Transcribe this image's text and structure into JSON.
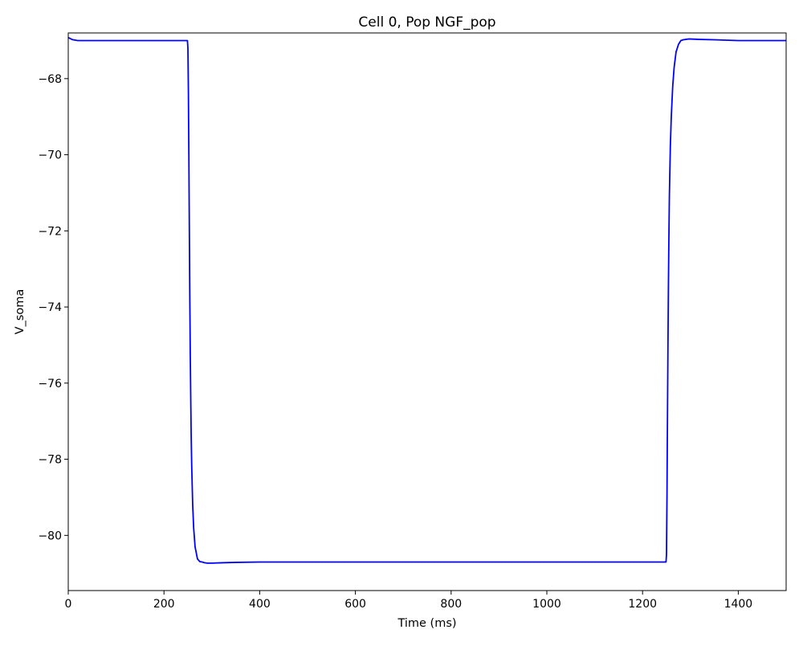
{
  "chart_data": {
    "type": "line",
    "title": "Cell 0, Pop NGF_pop",
    "xlabel": "Time (ms)",
    "ylabel": "V_soma",
    "xlim": [
      0,
      1500
    ],
    "ylim": [
      -81.45,
      -66.8
    ],
    "grid": false,
    "legend": "none",
    "x_ticks": [
      0,
      200,
      400,
      600,
      800,
      1000,
      1200,
      1400
    ],
    "x_tick_labels": [
      "0",
      "200",
      "400",
      "600",
      "800",
      "1000",
      "1200",
      "1400"
    ],
    "y_ticks": [
      -80,
      -78,
      -76,
      -74,
      -72,
      -70,
      -68
    ],
    "y_tick_labels": [
      "−80",
      "−78",
      "−76",
      "−74",
      "−72",
      "−70",
      "−68"
    ],
    "series": [
      {
        "color": "#0000ff",
        "x": [
          0,
          3,
          6,
          10,
          15,
          20,
          30,
          50,
          100,
          150,
          200,
          249,
          250,
          251,
          252,
          253,
          254,
          255,
          256,
          257,
          258,
          260,
          262,
          265,
          270,
          275,
          280,
          285,
          290,
          295,
          300,
          320,
          350,
          400,
          450,
          500,
          600,
          700,
          800,
          900,
          1000,
          1100,
          1200,
          1249,
          1250,
          1251,
          1252,
          1253,
          1254,
          1255,
          1256,
          1258,
          1260,
          1263,
          1266,
          1270,
          1275,
          1280,
          1285,
          1290,
          1295,
          1300,
          1320,
          1350,
          1400,
          1450,
          1500
        ],
        "y": [
          -66.92,
          -66.94,
          -66.96,
          -66.98,
          -66.99,
          -67.0,
          -67.0,
          -67.0,
          -67.0,
          -67.0,
          -67.0,
          -67.0,
          -67.2,
          -68.3,
          -70.0,
          -72.0,
          -73.8,
          -75.3,
          -76.5,
          -77.5,
          -78.2,
          -79.2,
          -79.8,
          -80.3,
          -80.62,
          -80.69,
          -80.7,
          -80.72,
          -80.73,
          -80.73,
          -80.73,
          -80.72,
          -80.71,
          -80.7,
          -80.7,
          -80.7,
          -80.7,
          -80.7,
          -80.7,
          -80.7,
          -80.7,
          -80.7,
          -80.7,
          -80.7,
          -80.5,
          -79.0,
          -77.0,
          -75.1,
          -73.5,
          -72.2,
          -71.1,
          -69.8,
          -69.0,
          -68.2,
          -67.7,
          -67.3,
          -67.1,
          -67.0,
          -66.98,
          -66.97,
          -66.96,
          -66.96,
          -66.97,
          -66.98,
          -67.0,
          -67.0,
          -67.0
        ]
      }
    ]
  }
}
